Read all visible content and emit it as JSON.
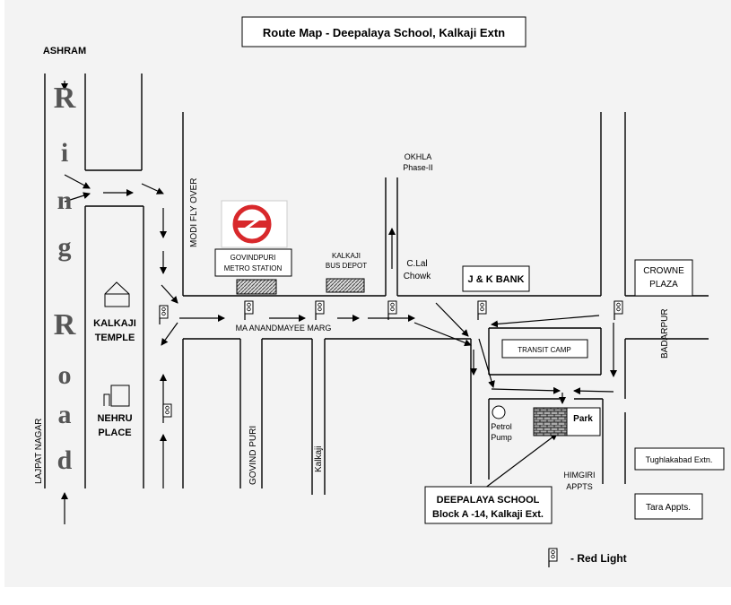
{
  "title": "Route Map - Deepalaya School, Kalkaji Extn",
  "ring_road": {
    "letters": [
      "R",
      "i",
      "n",
      "g",
      "R",
      "o",
      "a",
      "d"
    ]
  },
  "labels": {
    "ashram": "ASHRAM",
    "lajpat_nagar": "LAJPAT NAGAR",
    "kalkaji_temple_1": "KALKAJI",
    "kalkaji_temple_2": "TEMPLE",
    "nehru_place_1": "NEHRU",
    "nehru_place_2": "PLACE",
    "modi_flyover": "MODI FLY OVER",
    "metro_1": "GOVINDPURI",
    "metro_2": "METRO STATION",
    "depot_1": "KALKAJI",
    "depot_2": "BUS DEPOT",
    "okhla_1": "OKHLA",
    "okhla_2": "Phase-II",
    "clal_1": "C.Lal",
    "clal_2": "Chowk",
    "jk_bank": "J & K BANK",
    "crowne_1": "CROWNE",
    "crowne_2": "PLAZA",
    "badarpur": "BADARPUR",
    "ma_marg": "MA ANANDMAYEE MARG",
    "transit_camp": "TRANSIT CAMP",
    "petrol_1": "Petrol",
    "petrol_2": "Pump",
    "park": "Park",
    "govind_puri": "GOVIND PURI",
    "kalkaji_road": "Kalkaji",
    "himgiri_1": "HIMGIRI",
    "himgiri_2": "APPTS",
    "tughlakabad": "Tughlakabad  Extn.",
    "tara": "Tara Appts.",
    "school_1": "DEEPALAYA SCHOOL",
    "school_2": "Block A -14, Kalkaji Ext.",
    "legend": "- Red Light"
  },
  "colors": {
    "metro_logo": "#d8282b",
    "background": "#f3f3f3",
    "hatch": "#555555"
  }
}
